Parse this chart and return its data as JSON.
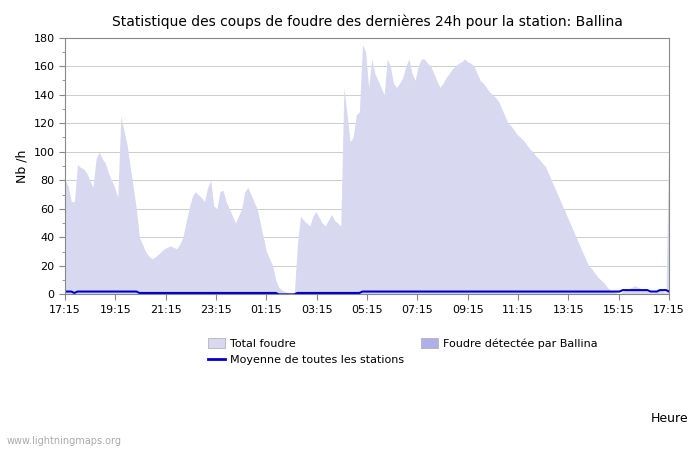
{
  "title": "Statistique des coups de foudre des dernières 24h pour la station: Ballina",
  "xlabel": "Heure",
  "ylabel": "Nb /h",
  "ylim": [
    0,
    180
  ],
  "yticks": [
    0,
    20,
    40,
    60,
    80,
    100,
    120,
    140,
    160,
    180
  ],
  "xtick_labels": [
    "17:15",
    "19:15",
    "21:15",
    "23:15",
    "01:15",
    "03:15",
    "05:15",
    "07:15",
    "09:15",
    "11:15",
    "13:15",
    "15:15",
    "17:15"
  ],
  "watermark": "www.lightningmaps.org",
  "color_total": "#d8d8f0",
  "color_ballina": "#b0b0e8",
  "color_moyenne": "#0000cc",
  "total_foudre": [
    80,
    76,
    65,
    65,
    91,
    89,
    88,
    85,
    80,
    75,
    95,
    100,
    95,
    92,
    85,
    80,
    75,
    68,
    125,
    115,
    105,
    90,
    75,
    60,
    40,
    35,
    30,
    27,
    25,
    26,
    28,
    30,
    32,
    33,
    34,
    33,
    32,
    35,
    40,
    50,
    60,
    68,
    72,
    70,
    68,
    65,
    75,
    80,
    62,
    60,
    72,
    73,
    65,
    60,
    55,
    50,
    55,
    60,
    72,
    75,
    70,
    65,
    60,
    50,
    40,
    30,
    25,
    20,
    10,
    5,
    3,
    2,
    1,
    0,
    1,
    35,
    55,
    52,
    50,
    48,
    55,
    58,
    54,
    50,
    48,
    52,
    56,
    52,
    50,
    48,
    145,
    127,
    107,
    110,
    126,
    128,
    175,
    170,
    145,
    165,
    155,
    150,
    145,
    140,
    165,
    160,
    148,
    145,
    148,
    152,
    160,
    165,
    155,
    150,
    160,
    165,
    165,
    162,
    160,
    155,
    150,
    145,
    148,
    152,
    155,
    158,
    160,
    162,
    163,
    165,
    163,
    162,
    160,
    155,
    150,
    148,
    145,
    142,
    140,
    138,
    135,
    130,
    125,
    120,
    118,
    115,
    112,
    110,
    108,
    105,
    102,
    100,
    97,
    95,
    92,
    90,
    85,
    80,
    75,
    70,
    65,
    60,
    55,
    50,
    45,
    40,
    35,
    30,
    25,
    20,
    18,
    15,
    12,
    10,
    8,
    5,
    3,
    2,
    1,
    0,
    2,
    3,
    4,
    5,
    6,
    5,
    4,
    3,
    2,
    1,
    1,
    2,
    3,
    2,
    1,
    120
  ],
  "ballina_foudre": [
    0,
    0,
    0,
    0,
    0,
    0,
    0,
    0,
    0,
    0,
    0,
    0,
    0,
    0,
    0,
    0,
    0,
    0,
    0,
    0,
    0,
    0,
    0,
    0,
    0,
    0,
    0,
    0,
    0,
    0,
    0,
    0,
    0,
    0,
    0,
    0,
    0,
    0,
    0,
    0,
    0,
    0,
    0,
    0,
    0,
    0,
    0,
    0,
    0,
    0,
    0,
    0,
    0,
    0,
    0,
    0,
    0,
    0,
    0,
    0,
    0,
    0,
    0,
    0,
    0,
    0,
    0,
    0,
    0,
    0,
    0,
    0,
    0,
    0,
    0,
    0,
    0,
    0,
    0,
    0,
    0,
    0,
    0,
    0,
    0,
    0,
    0,
    0,
    0,
    0,
    0,
    0,
    0,
    0,
    0,
    0,
    0,
    0,
    0,
    0,
    0,
    0,
    0,
    0,
    0,
    0,
    0,
    0,
    0,
    0,
    0,
    0,
    0,
    0,
    0,
    0,
    0,
    0,
    0,
    0,
    0,
    0,
    0,
    0,
    0,
    0,
    0,
    0,
    0,
    0,
    0,
    0,
    0,
    0,
    0,
    0,
    0,
    0,
    0,
    0,
    0,
    0,
    0,
    0,
    0,
    0,
    0,
    0,
    0,
    0,
    0,
    0,
    0,
    0,
    0,
    0,
    0,
    0,
    0,
    0,
    0,
    0,
    0,
    0,
    0,
    0,
    0,
    0,
    0,
    0,
    0,
    0,
    0,
    0,
    0,
    0,
    0,
    0,
    0,
    0,
    0,
    0,
    0,
    0,
    0,
    0,
    0,
    0,
    0,
    0,
    0,
    0,
    0,
    0,
    0,
    0
  ],
  "moyenne": [
    2,
    2,
    2,
    1,
    2,
    2,
    2,
    2,
    2,
    2,
    2,
    2,
    2,
    2,
    2,
    2,
    2,
    2,
    2,
    2,
    2,
    2,
    2,
    2,
    1,
    1,
    1,
    1,
    1,
    1,
    1,
    1,
    1,
    1,
    1,
    1,
    1,
    1,
    1,
    1,
    1,
    1,
    1,
    1,
    1,
    1,
    1,
    1,
    1,
    1,
    1,
    1,
    1,
    1,
    1,
    1,
    1,
    1,
    1,
    1,
    1,
    1,
    1,
    1,
    1,
    1,
    1,
    1,
    1,
    0,
    0,
    0,
    0,
    0,
    0,
    1,
    1,
    1,
    1,
    1,
    1,
    1,
    1,
    1,
    1,
    1,
    1,
    1,
    1,
    1,
    1,
    1,
    1,
    1,
    1,
    1,
    2,
    2,
    2,
    2,
    2,
    2,
    2,
    2,
    2,
    2,
    2,
    2,
    2,
    2,
    2,
    2,
    2,
    2,
    2,
    2,
    2,
    2,
    2,
    2,
    2,
    2,
    2,
    2,
    2,
    2,
    2,
    2,
    2,
    2,
    2,
    2,
    2,
    2,
    2,
    2,
    2,
    2,
    2,
    2,
    2,
    2,
    2,
    2,
    2,
    2,
    2,
    2,
    2,
    2,
    2,
    2,
    2,
    2,
    2,
    2,
    2,
    2,
    2,
    2,
    2,
    2,
    2,
    2,
    2,
    2,
    2,
    2,
    2,
    2,
    2,
    2,
    2,
    2,
    2,
    2,
    2,
    2,
    2,
    2,
    3,
    3,
    3,
    3,
    3,
    3,
    3,
    3,
    3,
    2,
    2,
    2,
    3,
    3,
    3,
    2
  ]
}
